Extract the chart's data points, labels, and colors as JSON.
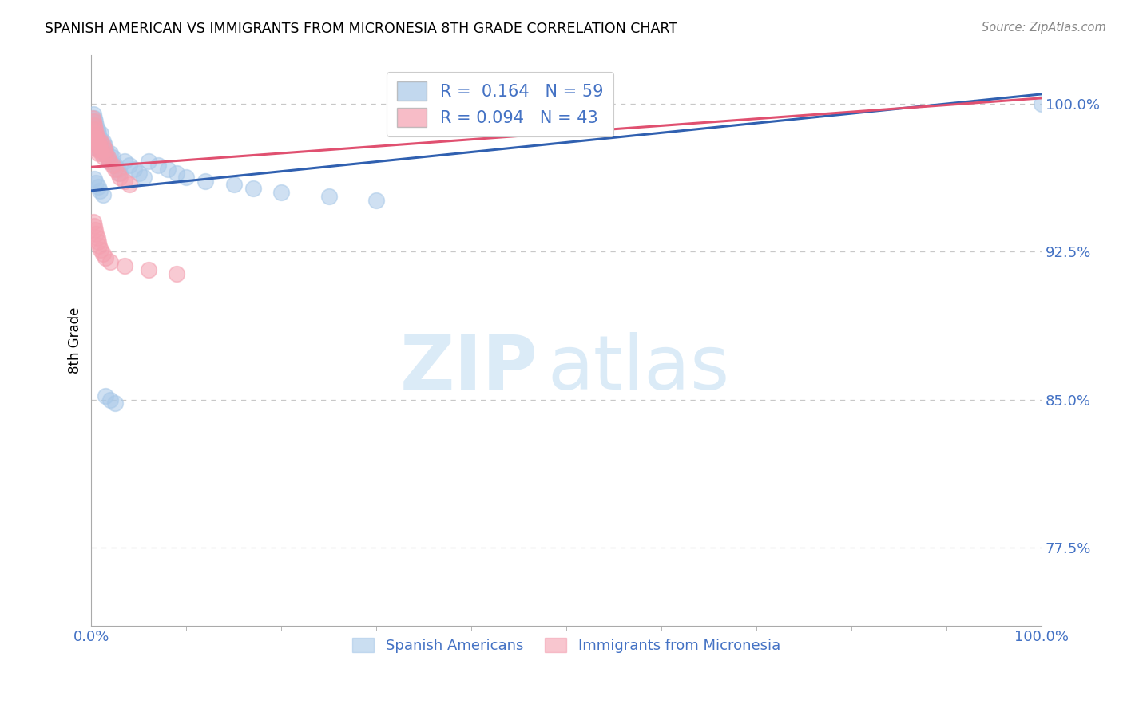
{
  "title": "SPANISH AMERICAN VS IMMIGRANTS FROM MICRONESIA 8TH GRADE CORRELATION CHART",
  "source": "Source: ZipAtlas.com",
  "xlabel_blue": "Spanish Americans",
  "xlabel_pink": "Immigrants from Micronesia",
  "ylabel": "8th Grade",
  "r_blue": 0.164,
  "n_blue": 59,
  "r_pink": 0.094,
  "n_pink": 43,
  "blue_color": "#a8c8e8",
  "pink_color": "#f4a0b0",
  "blue_line_color": "#3060b0",
  "pink_line_color": "#e05070",
  "tick_color": "#4472c4",
  "xlim": [
    0.0,
    1.0
  ],
  "ylim": [
    0.735,
    1.025
  ],
  "ytick_positions": [
    0.775,
    0.85,
    0.925,
    1.0
  ],
  "ytick_labels": [
    "77.5%",
    "85.0%",
    "92.5%",
    "100.0%"
  ],
  "xtick_positions": [
    0.0,
    1.0
  ],
  "xtick_labels": [
    "0.0%",
    "100.0%"
  ],
  "blue_line_x0": 0.0,
  "blue_line_y0": 0.956,
  "blue_line_x1": 1.0,
  "blue_line_y1": 1.005,
  "pink_line_x0": 0.0,
  "pink_line_y0": 0.968,
  "pink_line_x1": 1.0,
  "pink_line_y1": 1.003,
  "blue_scatter_x": [
    0.001,
    0.002,
    0.002,
    0.003,
    0.003,
    0.003,
    0.004,
    0.004,
    0.004,
    0.005,
    0.005,
    0.005,
    0.006,
    0.006,
    0.007,
    0.007,
    0.008,
    0.008,
    0.009,
    0.01,
    0.01,
    0.011,
    0.012,
    0.013,
    0.014,
    0.015,
    0.016,
    0.017,
    0.018,
    0.02,
    0.022,
    0.025,
    0.028,
    0.03,
    0.035,
    0.04,
    0.045,
    0.05,
    0.055,
    0.06,
    0.07,
    0.08,
    0.09,
    0.1,
    0.12,
    0.15,
    0.17,
    0.2,
    0.25,
    0.3,
    0.003,
    0.005,
    0.007,
    0.009,
    0.012,
    0.015,
    0.02,
    0.025,
    1.0
  ],
  "blue_scatter_y": [
    0.99,
    0.995,
    0.988,
    0.993,
    0.987,
    0.982,
    0.991,
    0.985,
    0.979,
    0.989,
    0.983,
    0.978,
    0.987,
    0.981,
    0.985,
    0.979,
    0.983,
    0.977,
    0.981,
    0.985,
    0.979,
    0.977,
    0.981,
    0.975,
    0.979,
    0.977,
    0.975,
    0.973,
    0.971,
    0.975,
    0.973,
    0.969,
    0.967,
    0.965,
    0.971,
    0.969,
    0.967,
    0.965,
    0.963,
    0.971,
    0.969,
    0.967,
    0.965,
    0.963,
    0.961,
    0.959,
    0.957,
    0.955,
    0.953,
    0.951,
    0.962,
    0.96,
    0.958,
    0.956,
    0.954,
    0.852,
    0.85,
    0.848,
    1.0
  ],
  "pink_scatter_x": [
    0.001,
    0.002,
    0.002,
    0.003,
    0.003,
    0.004,
    0.004,
    0.005,
    0.005,
    0.006,
    0.006,
    0.007,
    0.007,
    0.008,
    0.009,
    0.01,
    0.011,
    0.012,
    0.013,
    0.014,
    0.015,
    0.017,
    0.019,
    0.022,
    0.025,
    0.028,
    0.03,
    0.035,
    0.04,
    0.002,
    0.003,
    0.004,
    0.005,
    0.006,
    0.007,
    0.008,
    0.01,
    0.012,
    0.015,
    0.02,
    0.035,
    0.06,
    0.09
  ],
  "pink_scatter_y": [
    0.993,
    0.991,
    0.985,
    0.989,
    0.983,
    0.987,
    0.981,
    0.985,
    0.979,
    0.983,
    0.977,
    0.981,
    0.975,
    0.979,
    0.977,
    0.981,
    0.975,
    0.979,
    0.973,
    0.977,
    0.975,
    0.973,
    0.971,
    0.969,
    0.967,
    0.965,
    0.963,
    0.961,
    0.959,
    0.94,
    0.938,
    0.936,
    0.934,
    0.932,
    0.93,
    0.928,
    0.926,
    0.924,
    0.922,
    0.92,
    0.918,
    0.916,
    0.914
  ],
  "watermark_zip": "ZIP",
  "watermark_atlas": "atlas",
  "background_color": "#ffffff",
  "grid_color": "#c8c8c8"
}
